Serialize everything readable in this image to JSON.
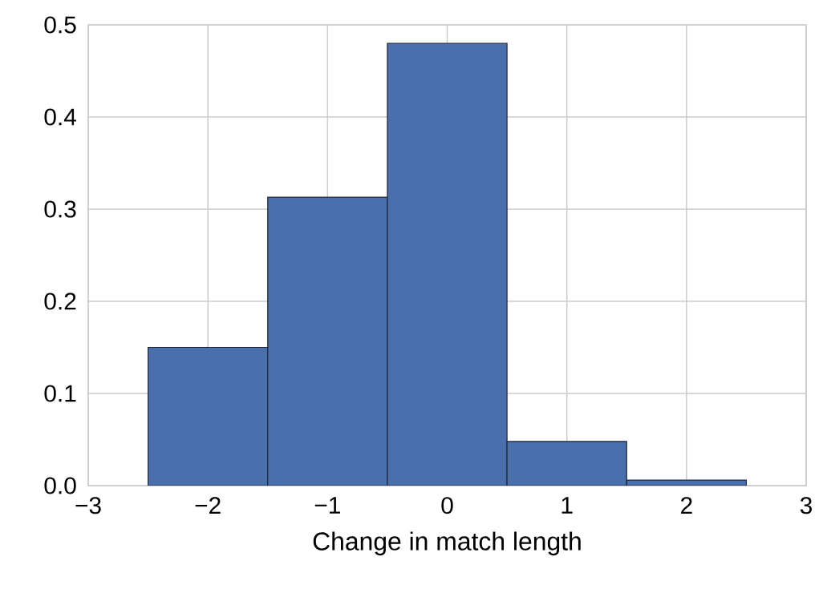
{
  "chart_data": {
    "type": "histogram",
    "xlabel": "Change in match length",
    "bins": [
      -2.5,
      -1.5,
      -0.5,
      0.5,
      1.5,
      2.5
    ],
    "values": [
      0.15,
      0.313,
      0.48,
      0.048,
      0.006
    ],
    "color": "#4a6fad",
    "xlim": [
      -3,
      3
    ],
    "xticks": [
      {
        "value": -3,
        "label": "−3"
      },
      {
        "value": -2,
        "label": "−2"
      },
      {
        "value": -1,
        "label": "−1"
      },
      0,
      1,
      2,
      3
    ],
    "ylim": [
      0,
      0.5
    ],
    "yticks": [
      {
        "value": 0,
        "label": "0.0"
      },
      0.1,
      0.2,
      0.3,
      0.4,
      0.5
    ],
    "grid": true
  }
}
